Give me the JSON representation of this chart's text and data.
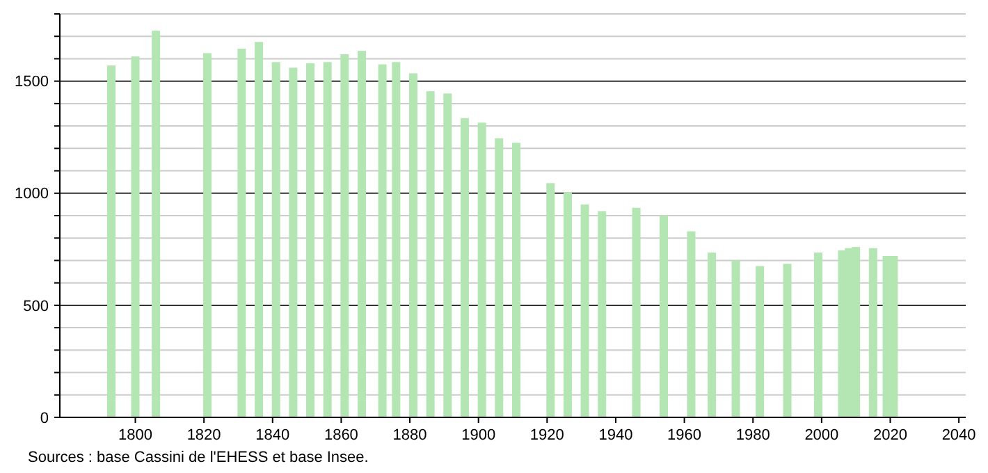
{
  "chart_data": {
    "type": "bar",
    "color": "#b3e6b3",
    "x": [
      1793,
      1800,
      1806,
      1821,
      1831,
      1836,
      1841,
      1846,
      1851,
      1856,
      1861,
      1866,
      1872,
      1876,
      1881,
      1886,
      1891,
      1896,
      1901,
      1906,
      1911,
      1921,
      1926,
      1931,
      1936,
      1946,
      1954,
      1962,
      1968,
      1975,
      1982,
      1990,
      1999,
      2006,
      2008,
      2010,
      2015,
      2019,
      2021
    ],
    "values": [
      1570,
      1610,
      1725,
      1625,
      1645,
      1675,
      1585,
      1560,
      1580,
      1585,
      1620,
      1635,
      1575,
      1585,
      1535,
      1455,
      1445,
      1335,
      1315,
      1245,
      1225,
      1045,
      1005,
      950,
      920,
      935,
      900,
      830,
      735,
      700,
      675,
      685,
      735,
      745,
      755,
      760,
      755,
      720,
      720
    ],
    "xlim": [
      1778,
      2042
    ],
    "xticks": [
      1800,
      1820,
      1840,
      1860,
      1880,
      1900,
      1920,
      1940,
      1960,
      1980,
      2000,
      2020,
      2040
    ],
    "ylim": [
      0,
      1800
    ],
    "yticks": [
      0,
      {
        "value": 100,
        "label": null
      },
      {
        "value": 200,
        "label": null
      },
      {
        "value": 300,
        "label": null
      },
      {
        "value": 400,
        "label": null
      },
      500,
      {
        "value": 600,
        "label": null
      },
      {
        "value": 700,
        "label": null
      },
      {
        "value": 800,
        "label": null
      },
      {
        "value": 900,
        "label": null
      },
      1000,
      {
        "value": 1100,
        "label": null
      },
      {
        "value": 1200,
        "label": null
      },
      {
        "value": 1300,
        "label": null
      },
      {
        "value": 1400,
        "label": null
      },
      1500,
      {
        "value": 1600,
        "label": null
      },
      {
        "value": 1700,
        "label": null
      },
      {
        "value": 1800,
        "label": null
      }
    ],
    "grid": true,
    "annotations": [
      "Sources : base Cassini de l'EHESS et base Insee."
    ]
  }
}
